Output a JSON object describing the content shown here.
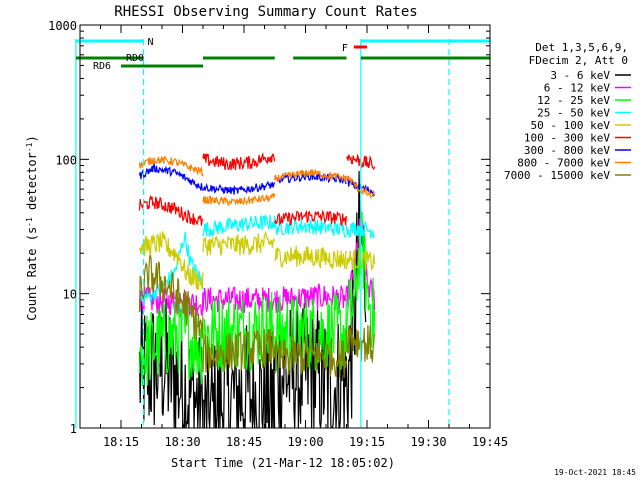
{
  "chart_data": {
    "type": "line",
    "title": "RHESSI Observing Summary Count Rates",
    "xlabel": "Start Time (21-Mar-12 18:05:02)",
    "ylabel": "Count Rate (s^-1 detector^-1)",
    "ylabel_main": "Count Rate (s",
    "ylabel_sup1": "-1",
    "ylabel_mid": " detector",
    "ylabel_sup2": "-1",
    "ylabel_end": ")",
    "y_scale": "log",
    "xlim_minutes": [
      0,
      100
    ],
    "ylim": [
      1,
      1000
    ],
    "x_ticks": [
      {
        "label": "18:15",
        "minute": 10
      },
      {
        "label": "18:30",
        "minute": 25
      },
      {
        "label": "18:45",
        "minute": 40
      },
      {
        "label": "19:00",
        "minute": 55
      },
      {
        "label": "19:15",
        "minute": 70
      },
      {
        "label": "19:30",
        "minute": 85
      },
      {
        "label": "19:45",
        "minute": 100
      }
    ],
    "y_ticks": [
      {
        "label": "1000",
        "value": 1000
      },
      {
        "label": "100",
        "value": 100
      },
      {
        "label": "10",
        "value": 10
      },
      {
        "label": "1",
        "value": 1
      }
    ],
    "legend": {
      "placement": "right",
      "header": [
        "Det 1,3,5,6,9,",
        "FDecim 2, Att 0"
      ],
      "entries": [
        {
          "label": "3 - 6 keV",
          "color": "#000000"
        },
        {
          "label": "6 - 12 keV",
          "color": "#ff00ff"
        },
        {
          "label": "12 - 25 keV",
          "color": "#00ff00"
        },
        {
          "label": "25 - 50 keV",
          "color": "#00ffff"
        },
        {
          "label": "50 - 100 keV",
          "color": "#cccc00"
        },
        {
          "label": "100 - 300 keV",
          "color": "#ff0000"
        },
        {
          "label": "300 - 800 keV",
          "color": "#0000ff"
        },
        {
          "label": "800 - 7000 keV",
          "color": "#ff8000"
        },
        {
          "label": "7000 - 15000 keV",
          "color": "#808000"
        }
      ]
    },
    "observing_flags": {
      "night_label": "N",
      "saa_bars_minutes": [
        [
          -1,
          15.5
        ],
        [
          68.5,
          100
        ]
      ],
      "flare_label": "F",
      "flare_bar_minutes": [
        66.8,
        70
      ],
      "rd0_label": "RD0",
      "rd0_bars_minutes": [
        [
          -1,
          15.5
        ],
        [
          30,
          47.5
        ],
        [
          52,
          65
        ],
        [
          68.5,
          100
        ]
      ],
      "rd6_label": "RD6",
      "rd6_bar_minutes": [
        10,
        30
      ],
      "vertical_markers_solid": [
        -1,
        68.5
      ],
      "vertical_markers_dashed": [
        15.5,
        90
      ]
    },
    "series": [
      {
        "name": "3 - 6 keV",
        "color": "#000000",
        "noise": 0.55,
        "segments": [
          [
            14.5,
            30,
            [
              [
                14.5,
                2.5
              ],
              [
                20,
                3.0
              ],
              [
                24,
                2.2
              ],
              [
                30,
                1.4
              ]
            ]
          ],
          [
            30,
            47.5,
            [
              [
                30,
                1.1
              ],
              [
                35,
                1.6
              ],
              [
                40,
                1.8
              ],
              [
                47.5,
                1.5
              ]
            ]
          ],
          [
            47.5,
            65,
            [
              [
                47.5,
                2.5
              ],
              [
                52,
                2.5
              ],
              [
                58,
                2.4
              ],
              [
                62,
                2.0
              ],
              [
                65,
                2.4
              ]
            ]
          ],
          [
            65,
            69.8,
            [
              [
                65,
                2.2
              ],
              [
                66,
                3
              ],
              [
                67,
                7
              ],
              [
                68,
                25
              ],
              [
                69,
                22
              ],
              [
                69.8,
                10
              ]
            ]
          ]
        ]
      },
      {
        "name": "6 - 12 keV",
        "color": "#ff00ff",
        "noise": 0.1,
        "segments": [
          [
            14.5,
            30,
            [
              [
                14.5,
                9
              ],
              [
                30,
                8.5
              ]
            ]
          ],
          [
            30,
            47.5,
            [
              [
                30,
                9
              ],
              [
                40,
                9
              ],
              [
                47.5,
                9
              ]
            ]
          ],
          [
            47.5,
            65,
            [
              [
                47.5,
                9
              ],
              [
                60,
                9.5
              ],
              [
                65,
                9
              ]
            ]
          ],
          [
            65,
            72,
            [
              [
                65,
                9
              ],
              [
                67,
                15
              ],
              [
                68,
                30
              ],
              [
                69,
                28
              ],
              [
                70,
                12
              ],
              [
                72,
                9
              ]
            ]
          ]
        ]
      },
      {
        "name": "12 - 25 keV",
        "color": "#00ff00",
        "noise": 0.3,
        "segments": [
          [
            14.5,
            30,
            [
              [
                14.5,
                3.5
              ],
              [
                20,
                4.5
              ],
              [
                25,
                5.0
              ],
              [
                30,
                4.0
              ]
            ]
          ],
          [
            30,
            47.5,
            [
              [
                30,
                5.0
              ],
              [
                40,
                5.3
              ],
              [
                47.5,
                5.5
              ]
            ]
          ],
          [
            47.5,
            65,
            [
              [
                47.5,
                5.0
              ],
              [
                58,
                5.2
              ],
              [
                65,
                5.0
              ]
            ]
          ],
          [
            65,
            72,
            [
              [
                65,
                6
              ],
              [
                67,
                9
              ],
              [
                68,
                20
              ],
              [
                69,
                22
              ],
              [
                70,
                10
              ],
              [
                72,
                6
              ]
            ]
          ]
        ]
      },
      {
        "name": "25 - 50 keV",
        "color": "#00ffff",
        "noise": 0.06,
        "segments": [
          [
            14.5,
            30,
            [
              [
                14.5,
                9
              ],
              [
                18,
                10
              ],
              [
                23,
                14
              ],
              [
                25.5,
                27
              ],
              [
                27,
                17
              ],
              [
                30,
                12
              ]
            ]
          ],
          [
            30,
            47.5,
            [
              [
                30,
                30
              ],
              [
                40,
                33
              ],
              [
                47.5,
                34
              ]
            ]
          ],
          [
            47.5,
            65,
            [
              [
                47.5,
                31
              ],
              [
                55,
                32
              ],
              [
                65,
                30
              ]
            ]
          ],
          [
            65,
            72,
            [
              [
                65,
                30
              ],
              [
                68,
                31
              ],
              [
                72,
                29
              ]
            ]
          ]
        ]
      },
      {
        "name": "50 - 100 keV",
        "color": "#cccc00",
        "noise": 0.08,
        "segments": [
          [
            14.5,
            30,
            [
              [
                14.5,
                22
              ],
              [
                20,
                24
              ],
              [
                24,
                19
              ],
              [
                26,
                14
              ],
              [
                30,
                12
              ]
            ]
          ],
          [
            30,
            47.5,
            [
              [
                30,
                23
              ],
              [
                40,
                23
              ],
              [
                47.5,
                24
              ]
            ]
          ],
          [
            47.5,
            65,
            [
              [
                47.5,
                19
              ],
              [
                55,
                19
              ],
              [
                65,
                18
              ]
            ]
          ],
          [
            65,
            72,
            [
              [
                65,
                18
              ],
              [
                68,
                18
              ],
              [
                72,
                17
              ]
            ]
          ]
        ]
      },
      {
        "name": "100 - 300 keV",
        "color": "#ff0000",
        "noise": 0.05,
        "segments": [
          [
            14.5,
            30,
            [
              [
                14.5,
                45
              ],
              [
                18,
                48
              ],
              [
                23,
                43
              ],
              [
                26,
                38
              ],
              [
                30,
                34
              ]
            ]
          ],
          [
            30,
            47.5,
            [
              [
                30,
                100
              ],
              [
                36,
                92
              ],
              [
                42,
                95
              ],
              [
                47.5,
                108
              ]
            ]
          ],
          [
            47.5,
            65,
            [
              [
                47.5,
                35
              ],
              [
                56,
                38
              ],
              [
                65,
                36
              ]
            ]
          ],
          [
            65,
            72,
            [
              [
                65,
                105
              ],
              [
                68,
                98
              ],
              [
                72,
                90
              ]
            ]
          ]
        ]
      },
      {
        "name": "300 - 800 keV",
        "color": "#0000ff",
        "noise": 0.03,
        "segments": [
          [
            14.5,
            30,
            [
              [
                14.5,
                75
              ],
              [
                18,
                86
              ],
              [
                23,
                80
              ],
              [
                30,
                62
              ]
            ]
          ],
          [
            30,
            47.5,
            [
              [
                30,
                62
              ],
              [
                38,
                58
              ],
              [
                47.5,
                65
              ]
            ]
          ],
          [
            47.5,
            65,
            [
              [
                47.5,
                70
              ],
              [
                56,
                75
              ],
              [
                65,
                70
              ]
            ]
          ],
          [
            65,
            72,
            [
              [
                65,
                68
              ],
              [
                68,
                62
              ],
              [
                72,
                57
              ]
            ]
          ]
        ]
      },
      {
        "name": "800 - 7000 keV",
        "color": "#ff8000",
        "noise": 0.03,
        "segments": [
          [
            14.5,
            30,
            [
              [
                14.5,
                90
              ],
              [
                18,
                100
              ],
              [
                23,
                96
              ],
              [
                30,
                80
              ]
            ]
          ],
          [
            30,
            47.5,
            [
              [
                30,
                50
              ],
              [
                38,
                48
              ],
              [
                47.5,
                52
              ]
            ]
          ],
          [
            47.5,
            65,
            [
              [
                47.5,
                72
              ],
              [
                56,
                80
              ],
              [
                65,
                72
              ]
            ]
          ],
          [
            65,
            72,
            [
              [
                65,
                75
              ],
              [
                68,
                60
              ],
              [
                72,
                52
              ]
            ]
          ]
        ]
      },
      {
        "name": "7000 - 15000 keV",
        "color": "#808000",
        "noise": 0.15,
        "segments": [
          [
            14.5,
            30,
            [
              [
                14.5,
                10
              ],
              [
                17,
                14
              ],
              [
                22,
                11
              ],
              [
                26,
                8
              ],
              [
                30,
                5
              ]
            ]
          ],
          [
            30,
            47.5,
            [
              [
                30,
                3.5
              ],
              [
                40,
                3.8
              ],
              [
                47.5,
                4
              ]
            ]
          ],
          [
            47.5,
            65,
            [
              [
                47.5,
                3.2
              ],
              [
                56,
                3.5
              ],
              [
                65,
                3.3
              ]
            ]
          ],
          [
            65,
            72,
            [
              [
                65,
                5
              ],
              [
                68,
                4.5
              ],
              [
                72,
                4
              ]
            ]
          ]
        ]
      }
    ]
  },
  "footer": {
    "timestamp": "19-Oct-2021 18:45"
  }
}
